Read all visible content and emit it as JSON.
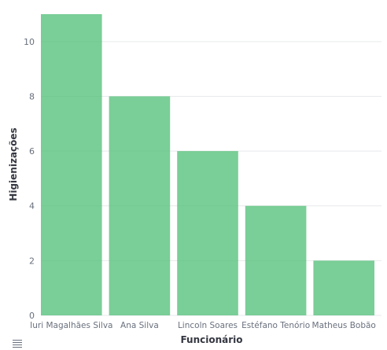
{
  "chart_data": {
    "type": "bar",
    "categories": [
      "Iuri Magalhães Silva",
      "Ana Silva",
      "Lincoln Soares",
      "Estéfano Tenório",
      "Matheus Bobão"
    ],
    "values": [
      11,
      8,
      6,
      4,
      2
    ],
    "xlabel": "Funcionário",
    "ylabel": "Higienizações",
    "ylim": [
      0,
      11
    ],
    "yticks": [
      0,
      2,
      4,
      6,
      8,
      10
    ],
    "grid": true,
    "bar_color": "#54c07a",
    "grid_color": "#e8e9ec",
    "text_color": "#69707d",
    "label_color": "#343741"
  }
}
